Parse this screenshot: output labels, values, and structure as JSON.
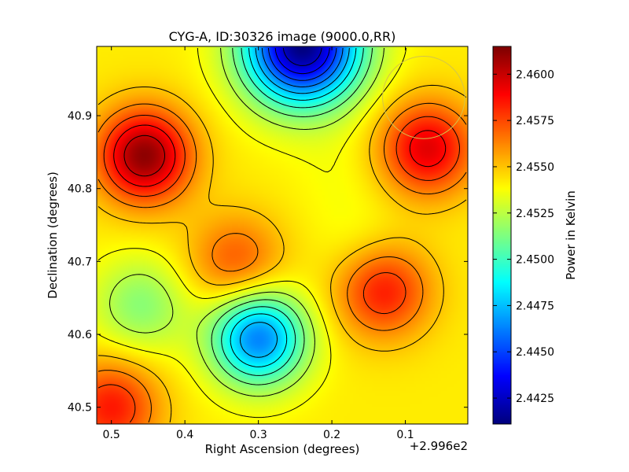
{
  "chart_data": {
    "type": "heatmap",
    "title": "CYG-A, ID:30326 image (9000.0,RR)",
    "xlabel": "Right Ascension (degrees)",
    "ylabel": "Declination (degrees)",
    "x_offset_label": "+2.996e2",
    "xlim": [
      0.52,
      0.015
    ],
    "ylim": [
      40.477,
      40.995
    ],
    "x_ticks": [
      0.5,
      0.4,
      0.3,
      0.2,
      0.1
    ],
    "x_tick_labels": [
      "0.5",
      "0.4",
      "0.3",
      "0.2",
      "0.1"
    ],
    "y_ticks": [
      40.5,
      40.6,
      40.7,
      40.8,
      40.9
    ],
    "y_tick_labels": [
      "40.5",
      "40.6",
      "40.7",
      "40.8",
      "40.9"
    ],
    "colorbar": {
      "label": "Power in Kelvin",
      "range": [
        2.4411,
        2.4615
      ],
      "ticks": [
        2.4425,
        2.445,
        2.4475,
        2.45,
        2.4525,
        2.455,
        2.4575,
        2.46
      ],
      "tick_labels": [
        "2.4425",
        "2.4450",
        "2.4475",
        "2.4500",
        "2.4525",
        "2.4550",
        "2.4575",
        "2.4600"
      ],
      "colormap": "jet"
    },
    "features": [
      {
        "ra": 0.455,
        "dec": 40.845,
        "value": 2.4612,
        "kind": "max"
      },
      {
        "ra": 0.07,
        "dec": 40.855,
        "value": 2.4595,
        "kind": "max"
      },
      {
        "ra": 0.5,
        "dec": 40.5,
        "value": 2.4585,
        "kind": "max"
      },
      {
        "ra": 0.13,
        "dec": 40.66,
        "value": 2.4585,
        "kind": "max"
      },
      {
        "ra": 0.33,
        "dec": 40.7,
        "value": 2.4572,
        "kind": "max"
      },
      {
        "ra": 0.3,
        "dec": 40.595,
        "value": 2.4462,
        "kind": "min"
      },
      {
        "ra": 0.24,
        "dec": 40.995,
        "value": 2.4411,
        "kind": "min"
      },
      {
        "ra": 0.19,
        "dec": 40.82,
        "value": 2.4538,
        "kind": "saddle"
      },
      {
        "ra": 0.16,
        "dec": 40.72,
        "value": 2.4535,
        "kind": "saddle"
      },
      {
        "ra": 0.46,
        "dec": 40.64,
        "value": 2.4515,
        "kind": "min"
      }
    ],
    "beam_circle": {
      "ra": 0.075,
      "dec": 40.925,
      "radius_deg": 0.056,
      "color": "#d4c44a"
    }
  }
}
